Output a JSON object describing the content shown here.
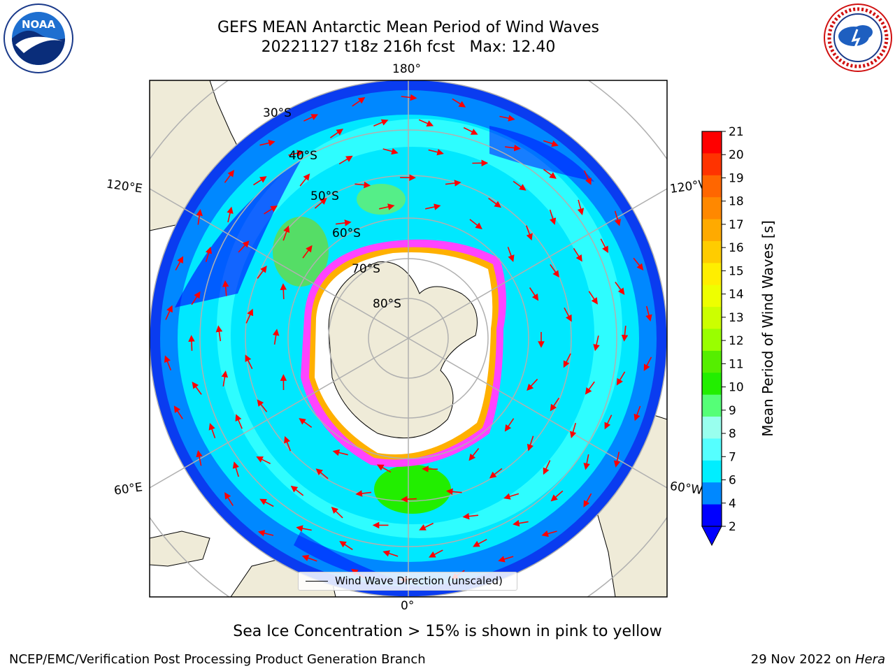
{
  "header": {
    "title_line1": "GEFS MEAN Antarctic Mean Period of Wind Waves",
    "title_line2": "20221127 t18z 216h fcst   Max: 12.40"
  },
  "logos": {
    "left": {
      "name": "noaa-logo",
      "text": "NOAA",
      "ring_text": "NATIONAL OCEANIC AND ATMOSPHERIC ADMINISTRATION · U.S. DEPARTMENT OF COMMERCE"
    },
    "right": {
      "name": "nws-logo",
      "ring_text": "NATIONAL WEATHER SERVICE"
    }
  },
  "map": {
    "projection": "south polar stereographic",
    "longitude_labels": {
      "top": "180°",
      "bottom": "0°",
      "upper_left": "120°E",
      "upper_right": "120°W",
      "lower_left": "60°E",
      "lower_right": "60°W"
    },
    "latitude_labels": [
      "30°S",
      "40°S",
      "50°S",
      "60°S",
      "70°S",
      "80°S"
    ],
    "land_color": "#efebd8",
    "grid_color": "#b0b0b0",
    "arrow_color": "#ff0000",
    "sea_ice_colors": [
      "#ff00ff",
      "#ffb000",
      "#ffff80"
    ]
  },
  "legend": {
    "label": "Wind Wave Direction (unscaled)"
  },
  "colorbar": {
    "label": "Mean Period of Wind Waves [s]",
    "ticks": [
      "21",
      "20",
      "19",
      "18",
      "17",
      "16",
      "15",
      "14",
      "13",
      "12",
      "11",
      "10",
      "9",
      "8",
      "7",
      "6",
      "4",
      "2"
    ],
    "colors": [
      "#ff0000",
      "#ff3300",
      "#ff6600",
      "#ff8800",
      "#ffaa00",
      "#ffcc00",
      "#ffee00",
      "#eeff00",
      "#ccff00",
      "#99ff00",
      "#55ee00",
      "#22ee00",
      "#55ff77",
      "#99ffee",
      "#55ffff",
      "#00eeff",
      "#0088ff",
      "#0000ff"
    ]
  },
  "subtitle": "Sea Ice Concentration > 15% is shown in pink to yellow",
  "footer": {
    "left": "NCEP/EMC/Verification Post Processing Product Generation Branch",
    "date": "29 Nov 2022 on ",
    "machine": "Hera"
  }
}
